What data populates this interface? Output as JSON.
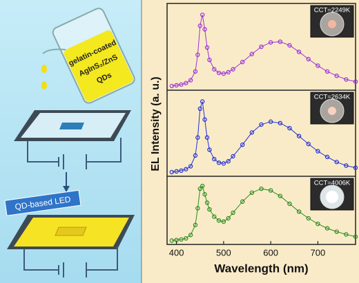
{
  "diagram": {
    "beaker_label": [
      "gelatin-coated",
      "AgInS₂/ZnS",
      "QDs"
    ],
    "led_label": "QD-based LED"
  },
  "chart_data": [
    {
      "type": "scatter",
      "annotation": "CCT=2249K",
      "ylabel": "EL Intensity (a. u.)",
      "color": "#9b30d9",
      "xlim": [
        380,
        780
      ],
      "ylim": [
        0,
        1.1
      ],
      "x": [
        390,
        400,
        410,
        420,
        430,
        440,
        445,
        450,
        455,
        460,
        465,
        470,
        480,
        490,
        500,
        510,
        520,
        540,
        560,
        580,
        600,
        620,
        640,
        660,
        680,
        700,
        720,
        740,
        760,
        780
      ],
      "values": [
        0.02,
        0.03,
        0.04,
        0.06,
        0.1,
        0.22,
        0.45,
        0.85,
        1.0,
        0.8,
        0.55,
        0.38,
        0.25,
        0.2,
        0.19,
        0.21,
        0.25,
        0.35,
        0.46,
        0.56,
        0.62,
        0.63,
        0.58,
        0.49,
        0.39,
        0.3,
        0.22,
        0.16,
        0.11,
        0.08
      ]
    },
    {
      "type": "scatter",
      "annotation": "CCT=2634K",
      "color": "#1f2fd6",
      "xlim": [
        380,
        780
      ],
      "ylim": [
        0,
        1.1
      ],
      "x": [
        390,
        400,
        410,
        420,
        430,
        440,
        445,
        450,
        455,
        460,
        465,
        470,
        480,
        490,
        500,
        510,
        520,
        540,
        560,
        580,
        600,
        620,
        640,
        660,
        680,
        700,
        720,
        740,
        760,
        780
      ],
      "values": [
        0.02,
        0.03,
        0.04,
        0.06,
        0.1,
        0.25,
        0.5,
        0.9,
        1.0,
        0.75,
        0.5,
        0.33,
        0.2,
        0.15,
        0.14,
        0.17,
        0.24,
        0.4,
        0.57,
        0.68,
        0.72,
        0.7,
        0.63,
        0.52,
        0.41,
        0.31,
        0.23,
        0.16,
        0.11,
        0.08
      ]
    },
    {
      "type": "scatter",
      "annotation": "CCT=4006K",
      "xlabel": "Wavelength (nm)",
      "color": "#2a8a1f",
      "xlim": [
        380,
        780
      ],
      "ylim": [
        0,
        1.1
      ],
      "xticks": [
        400,
        500,
        600,
        700
      ],
      "x": [
        390,
        400,
        410,
        420,
        430,
        440,
        445,
        450,
        455,
        460,
        465,
        470,
        480,
        490,
        500,
        510,
        520,
        540,
        560,
        580,
        600,
        620,
        640,
        660,
        680,
        700,
        720,
        740,
        760,
        780
      ],
      "values": [
        0.02,
        0.03,
        0.04,
        0.06,
        0.12,
        0.3,
        0.6,
        0.95,
        1.0,
        0.85,
        0.7,
        0.58,
        0.45,
        0.38,
        0.36,
        0.42,
        0.52,
        0.72,
        0.88,
        0.95,
        0.92,
        0.82,
        0.68,
        0.54,
        0.42,
        0.32,
        0.24,
        0.18,
        0.13,
        0.09
      ]
    }
  ]
}
